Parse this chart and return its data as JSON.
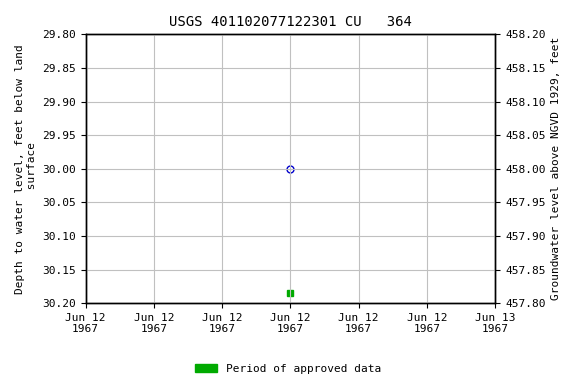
{
  "title": "USGS 401102077122301 CU   364",
  "ylabel_left": "Depth to water level, feet below land\n surface",
  "ylabel_right": "Groundwater level above NGVD 1929, feet",
  "ylim_left": [
    30.2,
    29.8
  ],
  "ylim_right": [
    457.8,
    458.2
  ],
  "yticks_left": [
    29.8,
    29.85,
    29.9,
    29.95,
    30.0,
    30.05,
    30.1,
    30.15,
    30.2
  ],
  "yticks_right": [
    457.8,
    457.85,
    457.9,
    457.95,
    458.0,
    458.05,
    458.1,
    458.15,
    458.2
  ],
  "xlim": [
    0,
    6
  ],
  "xtick_positions": [
    0,
    1,
    2,
    3,
    4,
    5,
    6
  ],
  "xtick_labels": [
    "Jun 12\n1967",
    "Jun 12\n1967",
    "Jun 12\n1967",
    "Jun 12\n1967",
    "Jun 12\n1967",
    "Jun 12\n1967",
    "Jun 13\n1967"
  ],
  "data_point_x": 3,
  "data_point_y": 30.0,
  "data_point_color": "#0000cc",
  "data_point_marker": "o",
  "approved_point_x": 3,
  "approved_point_y": 30.185,
  "approved_point_color": "#00aa00",
  "approved_point_marker": "s",
  "approved_point_size": 4,
  "background_color": "#ffffff",
  "grid_color": "#c0c0c0",
  "legend_label": "Period of approved data",
  "legend_color": "#00aa00",
  "font_family": "monospace",
  "title_fontsize": 10,
  "axis_label_fontsize": 8,
  "tick_fontsize": 8
}
